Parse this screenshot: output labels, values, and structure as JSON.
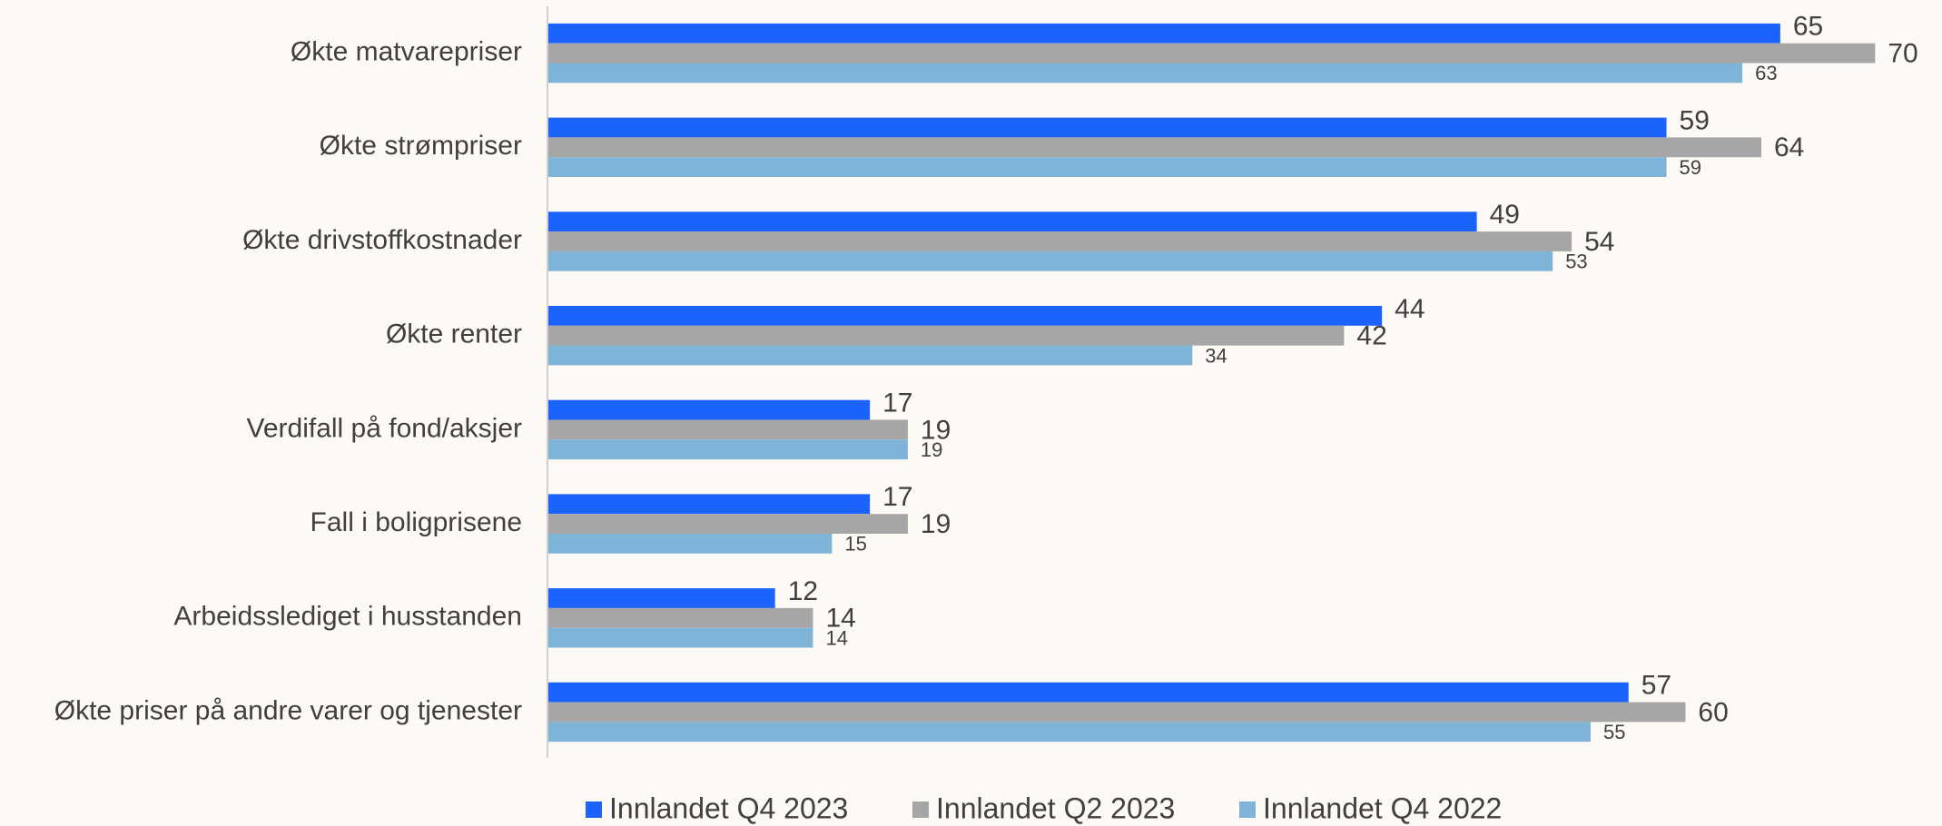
{
  "chart_data": {
    "type": "hbar",
    "categories": [
      "Økte matvarepriser",
      "Økte strømpriser",
      "Økte drivstoffkostnader",
      "Økte renter",
      "Verdifall på fond/aksjer",
      "Fall i boligprisene",
      "Arbeidsslediget i husstanden",
      "Økte priser på andre varer og tjenester"
    ],
    "series": [
      {
        "name": "Innlandet Q4 2023",
        "color": "#1b63fc",
        "values": [
          65,
          59,
          49,
          44,
          17,
          17,
          12,
          57
        ]
      },
      {
        "name": "Innlandet Q2 2023",
        "color": "#a6a6a6",
        "values": [
          70,
          64,
          54,
          42,
          19,
          19,
          14,
          60
        ]
      },
      {
        "name": "Innlandet Q4 2022",
        "color": "#7fb4d8",
        "values": [
          63,
          59,
          53,
          34,
          19,
          15,
          14,
          55
        ]
      }
    ],
    "xlim": [
      0,
      73
    ],
    "legend": "bottom"
  }
}
